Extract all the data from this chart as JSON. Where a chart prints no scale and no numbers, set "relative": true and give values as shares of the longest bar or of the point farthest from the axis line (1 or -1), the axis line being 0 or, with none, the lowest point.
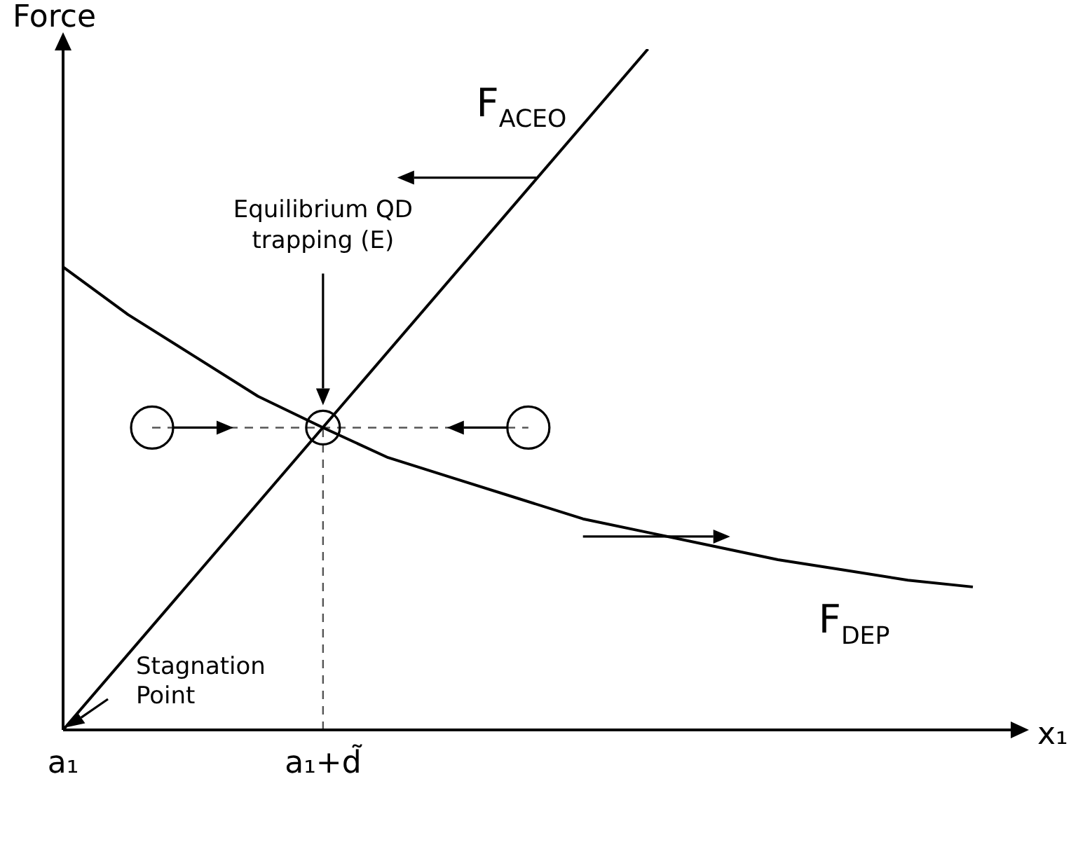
{
  "chart_data": {
    "type": "line",
    "xlabel": "x₁",
    "ylabel": "Force",
    "relative": true,
    "marker": "none",
    "legend": false,
    "tick_labels": "x",
    "categories": [
      "a₁",
      null,
      null,
      null,
      "a₁+d̃",
      null,
      null,
      null,
      null,
      null,
      null,
      null,
      null,
      null,
      null
    ],
    "series": [
      {
        "name": "F$_{ACEO}$",
        "color": "#000000",
        "values": [
          0,
          null,
          null,
          null,
          null,
          null,
          null,
          null,
          null,
          1,
          null,
          null,
          null,
          null,
          null
        ]
      },
      {
        "name": "F$_{DEP}$",
        "color": "#000000",
        "values": [
          0.68,
          0.61,
          0.55,
          0.49,
          0.444,
          0.4,
          0.37,
          0.34,
          0.31,
          0.29,
          0.27,
          0.25,
          0.235,
          0.22,
          0.21
        ]
      }
    ],
    "ref_lines": [
      {
        "axis": "x",
        "value": "a₁+d̃",
        "line_style": "dashed",
        "color": "#555555"
      },
      {
        "axis": "y",
        "value": 0.444,
        "line_style": "dashed",
        "color": "#555555"
      }
    ],
    "annotations": [
      "Equilibrium QD trapping (E)",
      "Stagnation Point"
    ]
  }
}
